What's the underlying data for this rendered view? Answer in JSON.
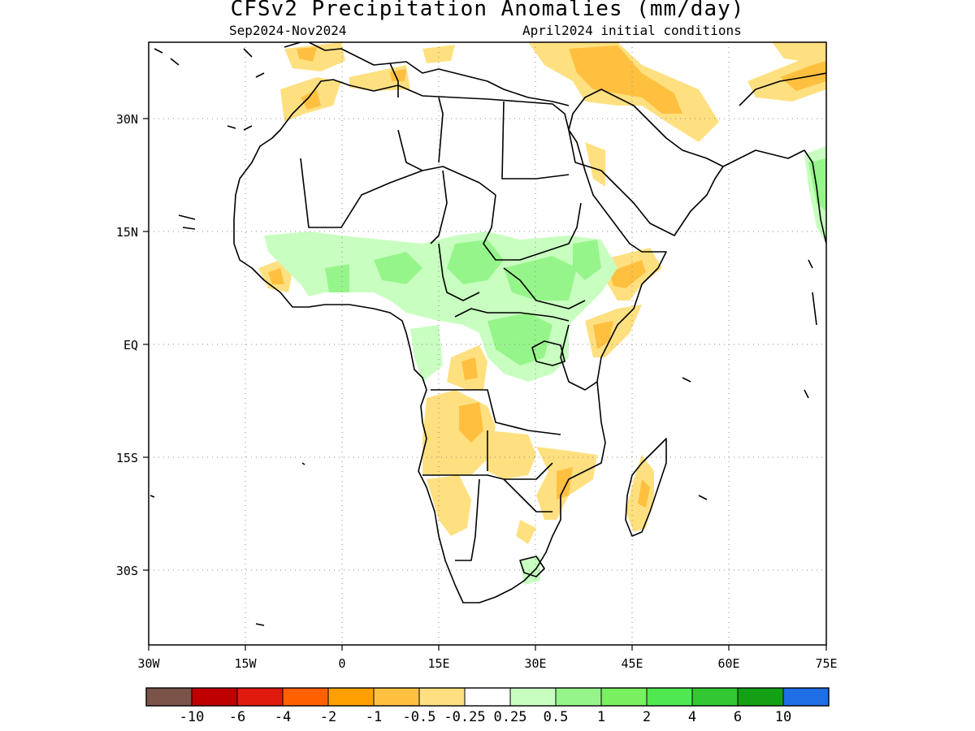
{
  "header": {
    "title": "CFSv2 Precipitation Anomalies (mm/day)",
    "period": "Sep2024-Nov2024",
    "init": "April2024 initial conditions"
  },
  "axes": {
    "lon_labels": [
      "30W",
      "15W",
      "0",
      "15E",
      "30E",
      "45E",
      "60E",
      "75E"
    ],
    "lat_labels": [
      "30N",
      "15N",
      "EQ",
      "15S",
      "30S"
    ],
    "lon_range": [
      -30,
      75
    ],
    "lat_range": [
      -40,
      40
    ]
  },
  "colorbar": {
    "colors": [
      "#7b5348",
      "#bf0000",
      "#e01a0c",
      "#ff6000",
      "#ffa000",
      "#ffc040",
      "#ffe080",
      "#ffffff",
      "#c8ffc0",
      "#96f58a",
      "#78f060",
      "#50e850",
      "#32c832",
      "#14a014",
      "#1e6ee6"
    ],
    "labels": [
      "-10",
      "-6",
      "-4",
      "-2",
      "-1",
      "-0.5",
      "-0.25",
      "0.25",
      "0.5",
      "1",
      "2",
      "4",
      "6",
      "10"
    ]
  },
  "legend_meaning": {
    "dry": "#ffc040",
    "dry_light": "#ffe080",
    "wet_light": "#c8ffc0",
    "wet": "#96f58a"
  }
}
